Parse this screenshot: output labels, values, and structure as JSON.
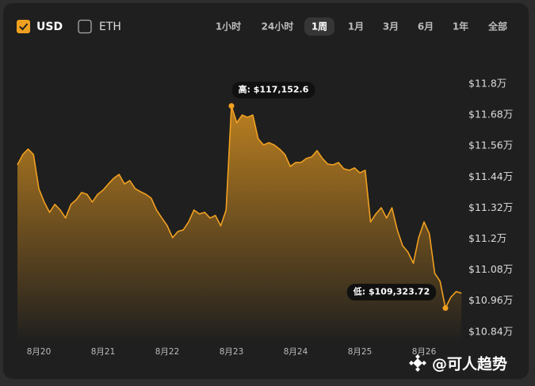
{
  "header": {
    "series_toggles": [
      {
        "label": "USD",
        "checked": true
      },
      {
        "label": "ETH",
        "checked": false
      }
    ],
    "ranges": [
      "1小时",
      "24小时",
      "1周",
      "1月",
      "3月",
      "6月",
      "1年",
      "全部"
    ],
    "selected_range": "1周"
  },
  "watermark": "@可人趋势",
  "chart_data": {
    "type": "area",
    "categories": [
      null,
      null,
      null,
      null,
      "8月20",
      null,
      null,
      null,
      null,
      null,
      null,
      null,
      null,
      null,
      null,
      null,
      "8月21",
      null,
      null,
      null,
      null,
      null,
      null,
      null,
      null,
      null,
      null,
      null,
      "8月22",
      null,
      null,
      null,
      null,
      null,
      null,
      null,
      null,
      null,
      null,
      null,
      "8月23",
      null,
      null,
      null,
      null,
      null,
      null,
      null,
      null,
      null,
      null,
      null,
      "8月24",
      null,
      null,
      null,
      null,
      null,
      null,
      null,
      null,
      null,
      null,
      null,
      "8月25",
      null,
      null,
      null,
      null,
      null,
      null,
      null,
      null,
      null,
      null,
      null,
      "8月26",
      null,
      null,
      null,
      null,
      null,
      null,
      null
    ],
    "series": [
      {
        "name": "USD",
        "color": "#f0a020",
        "values": [
          114870,
          115270,
          115480,
          115270,
          113950,
          113430,
          113030,
          113340,
          113120,
          112810,
          113340,
          113520,
          113800,
          113730,
          113430,
          113730,
          113890,
          114130,
          114350,
          114500,
          114130,
          114260,
          113950,
          113830,
          113730,
          113580,
          113120,
          112810,
          112510,
          112050,
          112290,
          112350,
          112660,
          113120,
          112970,
          113030,
          112810,
          112910,
          112510,
          113120,
          117152.6,
          116500,
          116800,
          116710,
          116800,
          115880,
          115640,
          115730,
          115640,
          115480,
          115270,
          114810,
          114960,
          114960,
          115120,
          115180,
          115420,
          115120,
          114900,
          114870,
          114960,
          114720,
          114660,
          114750,
          114560,
          114660,
          112660,
          112970,
          113210,
          112810,
          113210,
          112350,
          111740,
          111490,
          111060,
          112050,
          112660,
          112200,
          110670,
          110360,
          109323.72,
          109740,
          109960,
          109900
        ]
      }
    ],
    "high_label": "高: $117,152.6",
    "low_label": "低: $109,323.72",
    "ylim": [
      108000,
      119400
    ],
    "yticks": [
      {
        "value": 108400,
        "label": "$10.84万"
      },
      {
        "value": 109600,
        "label": "$10.96万"
      },
      {
        "value": 110800,
        "label": "$11.08万"
      },
      {
        "value": 112000,
        "label": "$11.2万"
      },
      {
        "value": 113200,
        "label": "$11.32万"
      },
      {
        "value": 114400,
        "label": "$11.44万"
      },
      {
        "value": 115600,
        "label": "$11.56万"
      },
      {
        "value": 116800,
        "label": "$11.68万"
      },
      {
        "value": 118000,
        "label": "$11.8万"
      }
    ]
  }
}
